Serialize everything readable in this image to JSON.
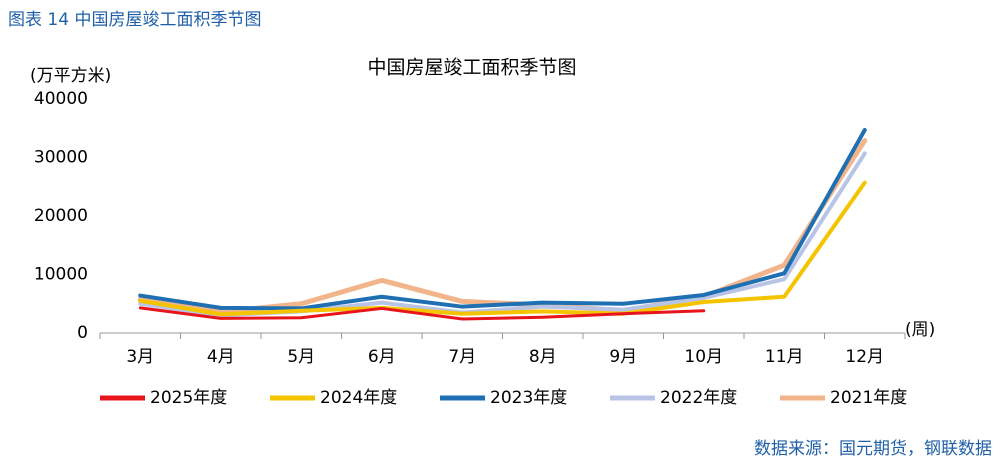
{
  "chart_data": {
    "type": "line",
    "caption": "图表 14 中国房屋竣工面积季节图",
    "title": "中国房屋竣工面积季节图",
    "y_label": "(万平方米)",
    "x_label": "(周)",
    "source": "数据来源：国元期货，钢联数据",
    "categories": [
      "3月",
      "4月",
      "5月",
      "6月",
      "7月",
      "8月",
      "9月",
      "10月",
      "11月",
      "12月"
    ],
    "series": [
      {
        "name": "2025年度",
        "color": "#e8141b",
        "values": [
          4300,
          2500,
          2600,
          4200,
          2400,
          2700,
          3300,
          3800,
          null,
          null
        ]
      },
      {
        "name": "2024年度",
        "color": "#f5c400",
        "values": [
          5500,
          3200,
          3800,
          4300,
          3300,
          3700,
          3300,
          5300,
          6200,
          25700
        ]
      },
      {
        "name": "2023年度",
        "color": "#1f6fb3",
        "values": [
          6400,
          4300,
          4200,
          6200,
          4500,
          5200,
          5000,
          6500,
          10200,
          34700
        ]
      },
      {
        "name": "2022年度",
        "color": "#b8c4e6",
        "values": [
          5000,
          3000,
          3700,
          5200,
          3500,
          4500,
          4000,
          6000,
          9200,
          30700
        ]
      },
      {
        "name": "2021年度",
        "color": "#f2b48a",
        "values": [
          5700,
          3600,
          5000,
          9000,
          5400,
          4800,
          3800,
          6200,
          11600,
          32900
        ]
      }
    ],
    "ylim": [
      0,
      40000
    ],
    "yticks": [
      0,
      10000,
      20000,
      30000,
      40000
    ]
  }
}
